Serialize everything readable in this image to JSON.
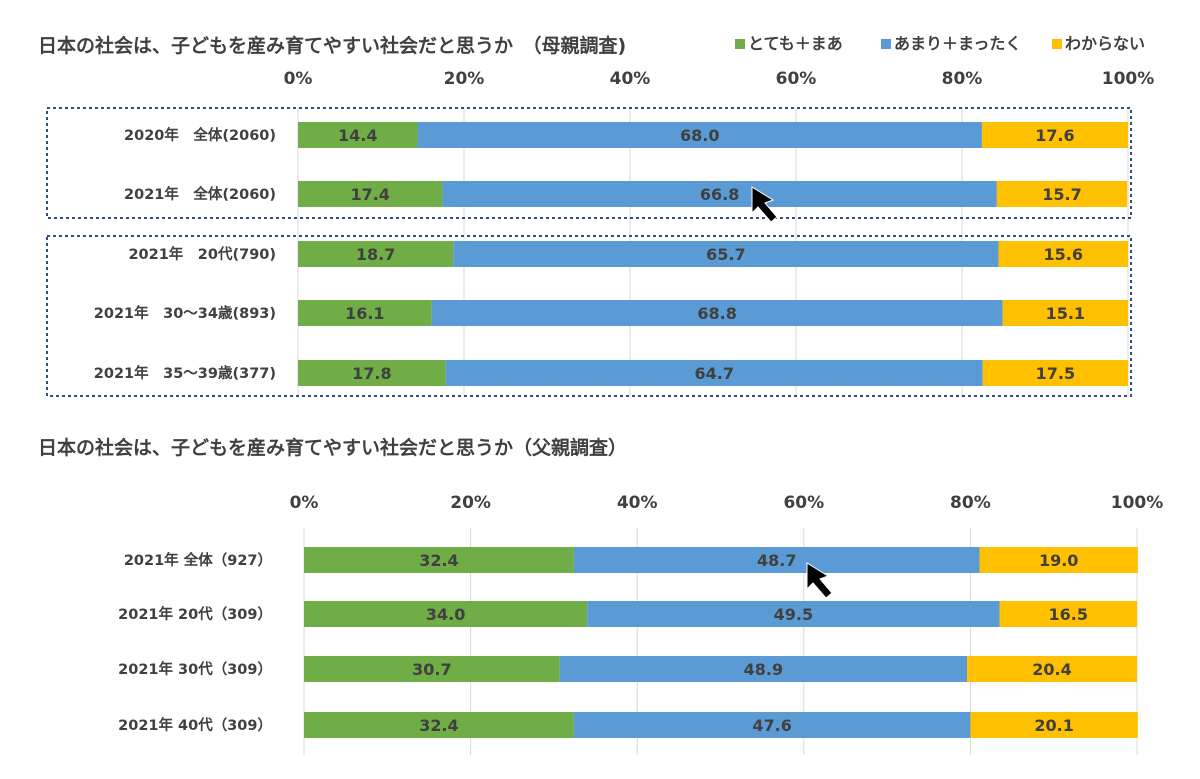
{
  "chart_data": [
    {
      "type": "bar",
      "orientation": "horizontal",
      "stacked": true,
      "percent": true,
      "title": "日本の社会は、子どもを産み育てやすい社会だと思うか　（母親調査)",
      "xlim": [
        0,
        100
      ],
      "ticks": [
        "0%",
        "20%",
        "40%",
        "60%",
        "80%",
        "100%"
      ],
      "categories": [
        "2020年　全体(2060)",
        "2021年　全体(2060)",
        "2021年　20代(790)",
        "2021年　30～34歳(893)",
        "2021年　35～39歳(377)"
      ],
      "series": [
        {
          "name": "とても＋まあ",
          "color": "#70ad47",
          "values": [
            14.4,
            17.4,
            18.7,
            16.1,
            17.8
          ]
        },
        {
          "name": "あまり＋まったく",
          "color": "#5b9bd5",
          "values": [
            68.0,
            66.8,
            65.7,
            68.8,
            64.7
          ]
        },
        {
          "name": "わからない",
          "color": "#ffc000",
          "values": [
            17.6,
            15.7,
            15.6,
            15.1,
            17.5
          ]
        }
      ],
      "value_labels": [
        [
          "14.4",
          "68.0",
          "17.6"
        ],
        [
          "17.4",
          "66.8",
          "15.7"
        ],
        [
          "18.7",
          "65.7",
          "15.6"
        ],
        [
          "16.1",
          "68.8",
          "15.1"
        ],
        [
          "17.8",
          "64.7",
          "17.5"
        ]
      ],
      "legend_position": "top-right",
      "grid": true
    },
    {
      "type": "bar",
      "orientation": "horizontal",
      "stacked": true,
      "percent": true,
      "title": "日本の社会は、子どもを産み育てやすい社会だと思うか（父親調査）",
      "xlim": [
        0,
        100
      ],
      "ticks": [
        "0%",
        "20%",
        "40%",
        "60%",
        "80%",
        "100%"
      ],
      "categories": [
        "2021年 全体（927）",
        "2021年 20代（309）",
        "2021年 30代（309）",
        "2021年 40代（309）"
      ],
      "series": [
        {
          "color": "#70ad47",
          "values": [
            32.4,
            34.0,
            30.7,
            32.4
          ]
        },
        {
          "color": "#5b9bd5",
          "values": [
            48.7,
            49.5,
            48.9,
            47.6
          ]
        },
        {
          "color": "#ffc000",
          "values": [
            19.0,
            16.5,
            20.4,
            20.1
          ]
        }
      ],
      "value_labels": [
        [
          "32.4",
          "48.7",
          "19.0"
        ],
        [
          "34.0",
          "49.5",
          "16.5"
        ],
        [
          "30.7",
          "48.9",
          "20.4"
        ],
        [
          "32.4",
          "47.6",
          "20.1"
        ]
      ],
      "grid": true
    }
  ]
}
